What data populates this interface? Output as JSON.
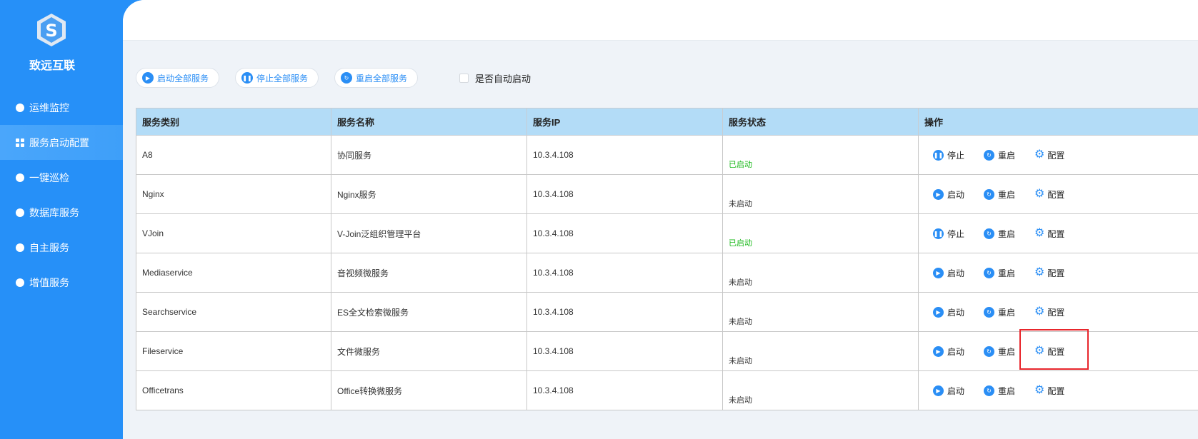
{
  "brand": {
    "name": "致远互联"
  },
  "sidebar": {
    "items": [
      {
        "label": "运维监控",
        "icon": "monitor-icon",
        "active": false
      },
      {
        "label": "服务启动配置",
        "icon": "grid-icon",
        "active": true
      },
      {
        "label": "一键巡检",
        "icon": "inspect-icon",
        "active": false
      },
      {
        "label": "数据库服务",
        "icon": "database-icon",
        "active": false
      },
      {
        "label": "自主服务",
        "icon": "heart-icon",
        "active": false
      },
      {
        "label": "增值服务",
        "icon": "plus-icon",
        "active": false
      }
    ]
  },
  "toolbar": {
    "start_all": "启动全部服务",
    "stop_all": "停止全部服务",
    "restart_all": "重启全部服务",
    "auto_start_label": "是否自动启动",
    "auto_start_checked": false
  },
  "table": {
    "headers": [
      "服务类别",
      "服务名称",
      "服务IP",
      "服务状态",
      "操作"
    ],
    "rows": [
      {
        "category": "A8",
        "name": "协同服务",
        "ip": "10.3.4.108",
        "status": "已启动",
        "running": true,
        "toggle": "停止",
        "restart": "重启",
        "config": "配置"
      },
      {
        "category": "Nginx",
        "name": "Nginx服务",
        "ip": "10.3.4.108",
        "status": "未启动",
        "running": false,
        "toggle": "启动",
        "restart": "重启",
        "config": "配置"
      },
      {
        "category": "VJoin",
        "name": "V-Join泛组织管理平台",
        "ip": "10.3.4.108",
        "status": "已启动",
        "running": true,
        "toggle": "停止",
        "restart": "重启",
        "config": "配置"
      },
      {
        "category": "Mediaservice",
        "name": "音视频微服务",
        "ip": "10.3.4.108",
        "status": "未启动",
        "running": false,
        "toggle": "启动",
        "restart": "重启",
        "config": "配置"
      },
      {
        "category": "Searchservice",
        "name": "ES全文检索微服务",
        "ip": "10.3.4.108",
        "status": "未启动",
        "running": false,
        "toggle": "启动",
        "restart": "重启",
        "config": "配置"
      },
      {
        "category": "Fileservice",
        "name": "文件微服务",
        "ip": "10.3.4.108",
        "status": "未启动",
        "running": false,
        "toggle": "启动",
        "restart": "重启",
        "config": "配置"
      },
      {
        "category": "Officetrans",
        "name": "Office转换微服务",
        "ip": "10.3.4.108",
        "status": "未启动",
        "running": false,
        "toggle": "启动",
        "restart": "重启",
        "config": "配置"
      }
    ]
  },
  "colors": {
    "sidebar": "#2690f8",
    "accent": "#2a8ef5",
    "running": "#18b818",
    "header_bg": "#b3dcf7",
    "highlight": "#e8262c"
  }
}
